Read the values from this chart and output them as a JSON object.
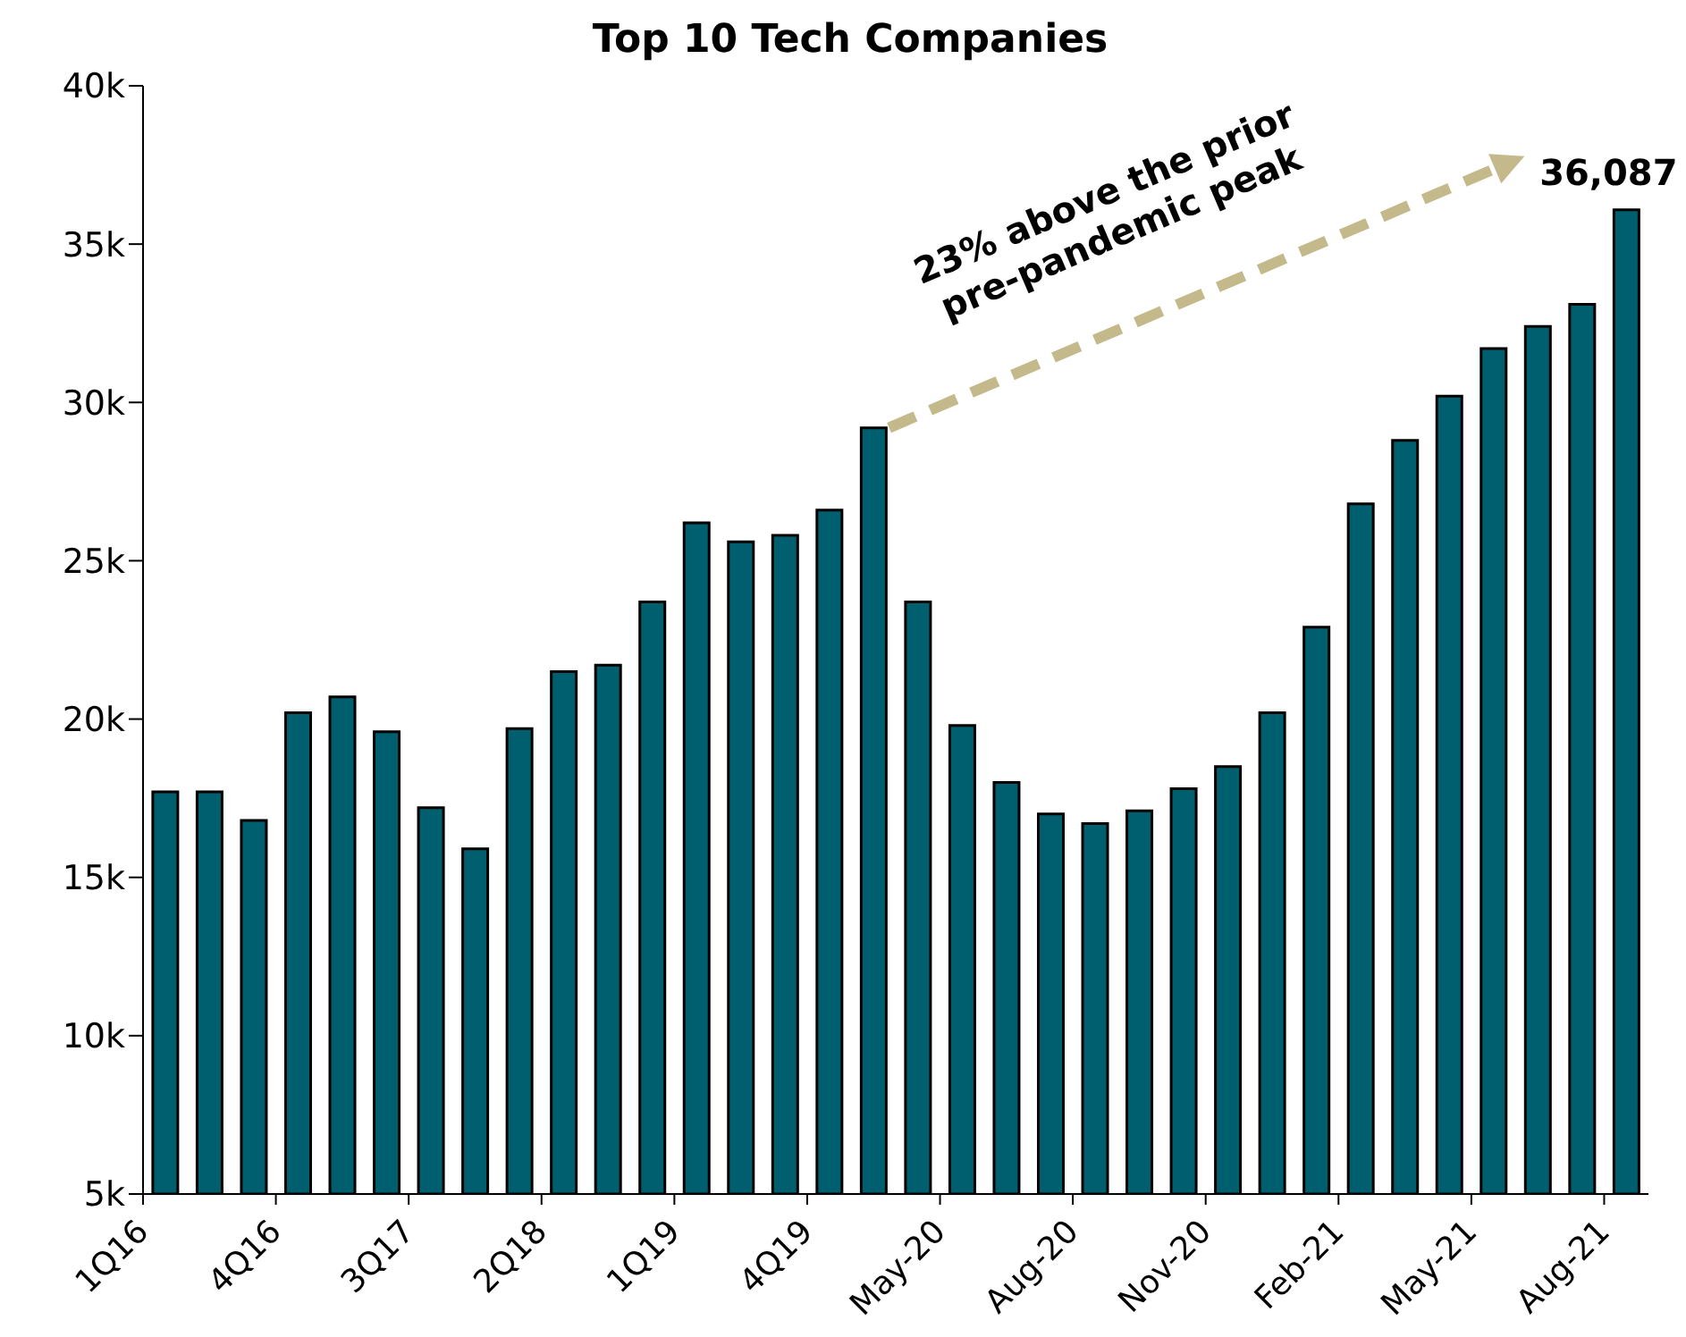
{
  "chart_data": {
    "type": "bar",
    "title": "Top 10 Tech Companies",
    "categories": [
      "1Q16",
      null,
      null,
      "4Q16",
      null,
      null,
      "3Q17",
      null,
      null,
      "2Q18",
      null,
      null,
      "1Q19",
      null,
      null,
      "4Q19",
      null,
      null,
      "May-20",
      null,
      null,
      "Aug-20",
      null,
      null,
      "Nov-20",
      null,
      null,
      "Feb-21",
      null,
      null,
      "May-21",
      null,
      null,
      "Aug-21"
    ],
    "values": [
      17700,
      17700,
      16800,
      20200,
      20700,
      19600,
      17200,
      15900,
      19700,
      21500,
      21700,
      23700,
      26200,
      25600,
      25800,
      26600,
      29200,
      23700,
      19800,
      18000,
      17000,
      16700,
      17100,
      17800,
      18500,
      20200,
      22900,
      26800,
      28800,
      30200,
      31700,
      32400,
      33100,
      36087
    ],
    "value_labels": [
      null,
      null,
      null,
      null,
      null,
      null,
      null,
      null,
      null,
      null,
      null,
      null,
      null,
      null,
      null,
      null,
      null,
      null,
      null,
      null,
      null,
      null,
      null,
      null,
      null,
      null,
      null,
      null,
      null,
      null,
      null,
      null,
      null,
      "36,087"
    ],
    "color": "#005f6e",
    "ylim": [
      5000,
      40000
    ],
    "yticks": [
      {
        "value": 5000,
        "label": "5k"
      },
      {
        "value": 10000,
        "label": "10k"
      },
      {
        "value": 15000,
        "label": "15k"
      },
      {
        "value": 20000,
        "label": "20k"
      },
      {
        "value": 25000,
        "label": "25k"
      },
      {
        "value": 30000,
        "label": "30k"
      },
      {
        "value": 35000,
        "label": "35k"
      },
      {
        "value": 40000,
        "label": "40k"
      }
    ],
    "annotations": [
      "23% above the prior pre-pandemic peak"
    ]
  }
}
